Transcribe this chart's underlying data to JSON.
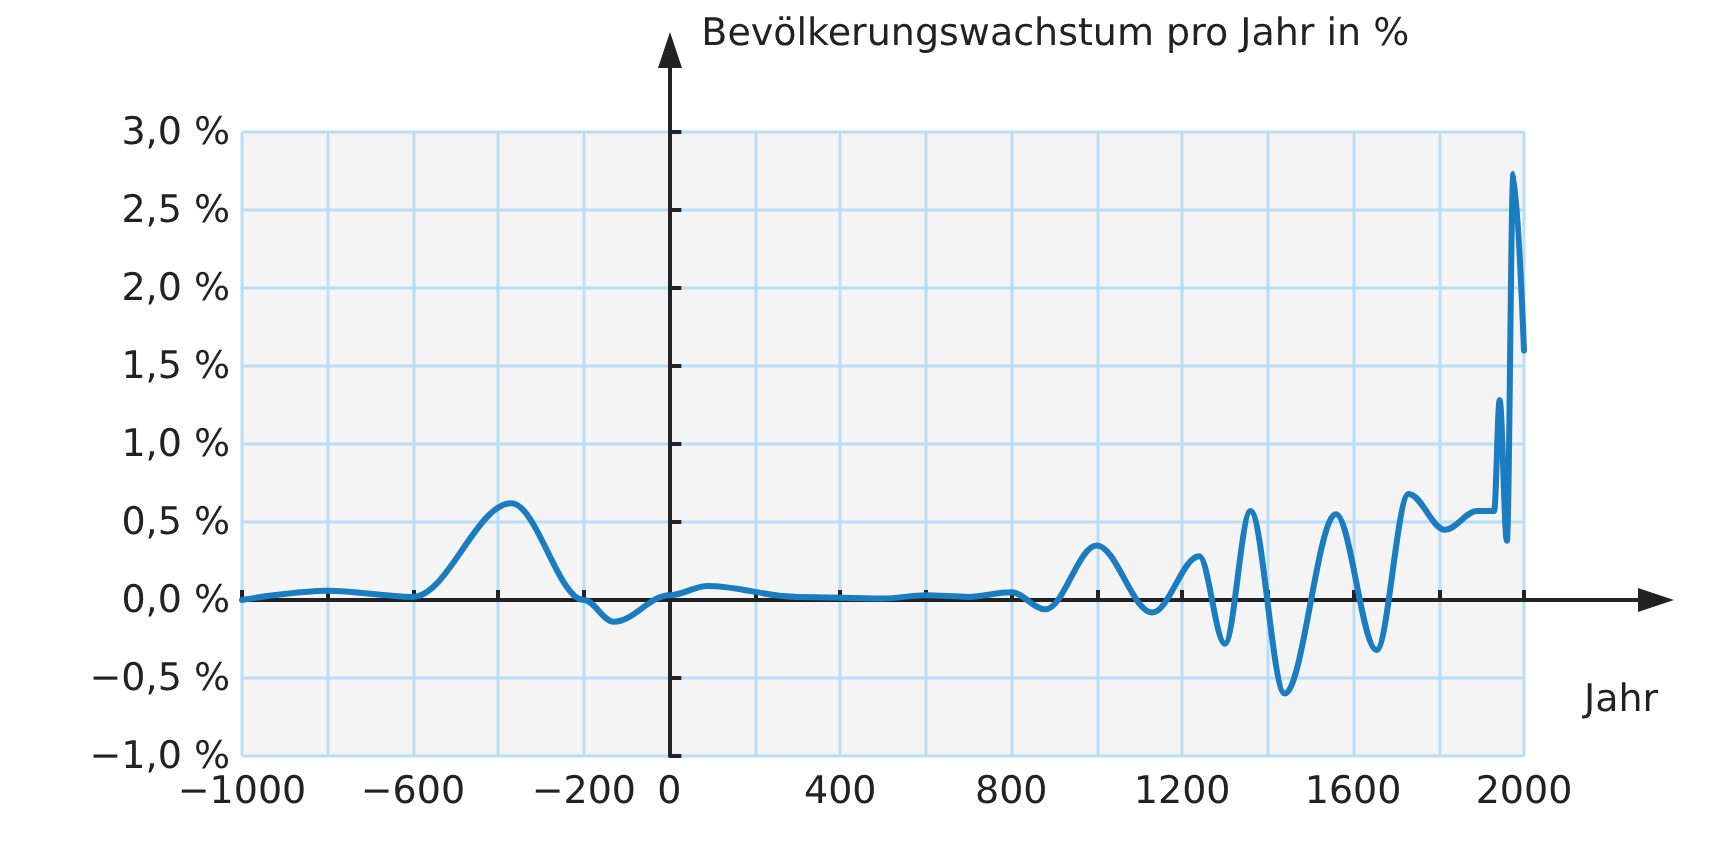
{
  "chart_data": {
    "type": "line",
    "ylabel": "Bevölkerungswachstum pro Jahr in %",
    "xlabel": "Jahr",
    "x": [
      -1000,
      -800,
      -600,
      -370,
      -200,
      -130,
      0,
      90,
      300,
      500,
      600,
      700,
      800,
      880,
      1000,
      1130,
      1240,
      1300,
      1360,
      1440,
      1560,
      1655,
      1730,
      1815,
      1890,
      1930,
      1943,
      1960,
      1975,
      2000
    ],
    "series": [
      {
        "color": "#1a7cc1",
        "values": [
          0,
          0.06,
          0.02,
          0.62,
          0,
          -0.14,
          0.03,
          0.09,
          0.02,
          0.01,
          0.03,
          0.02,
          0.05,
          -0.06,
          0.35,
          -0.08,
          0.28,
          -0.28,
          0.57,
          -0.6,
          0.55,
          -0.32,
          0.68,
          0.45,
          0.57,
          0.57,
          1.28,
          0.38,
          2.73,
          1.6
        ]
      }
    ],
    "xlim": [
      -1000,
      2000
    ],
    "xticks": [
      -1000,
      {
        "value": -800,
        "label": null
      },
      -600,
      {
        "value": -400,
        "label": null
      },
      -200,
      0,
      {
        "value": 200,
        "label": null
      },
      400,
      {
        "value": 600,
        "label": null
      },
      800,
      {
        "value": 1000,
        "label": null
      },
      1200,
      {
        "value": 1400,
        "label": null
      },
      1600,
      {
        "value": 1800,
        "label": null
      },
      2000
    ],
    "ylim": [
      -1,
      3
    ],
    "yticks": [
      {
        "value": -1,
        "label": "−1,0 %"
      },
      {
        "value": -0.5,
        "label": "−0,5 %"
      },
      {
        "value": 0,
        "label": "0,0 %"
      },
      {
        "value": 0.5,
        "label": "0,5 %"
      },
      {
        "value": 1,
        "label": "1,0 %"
      },
      {
        "value": 1.5,
        "label": "1,5 %"
      },
      {
        "value": 2,
        "label": "2,0 %"
      },
      {
        "value": 2.5,
        "label": "2,5 %"
      },
      {
        "value": 3,
        "label": "3,0 %"
      }
    ],
    "grid": true,
    "marker": "none",
    "line_style": "solid"
  }
}
